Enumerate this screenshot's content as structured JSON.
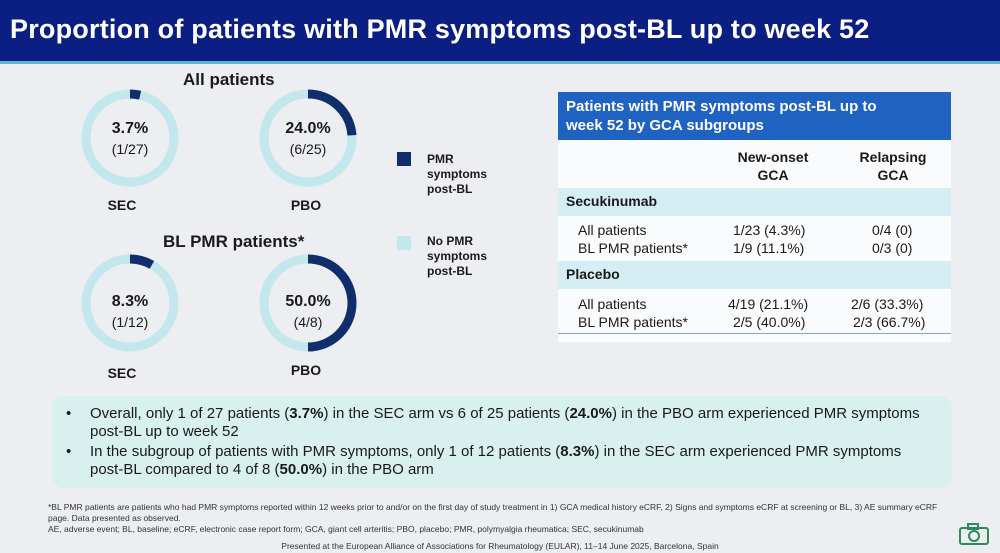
{
  "header": {
    "title": "Proportion of patients with PMR symptoms post-BL up to week 52"
  },
  "colors": {
    "filled": "#102e6b",
    "empty": "#c2e7ec",
    "title_bg": "#0b1e82",
    "table_head": "#1f62c2",
    "band": "#d4eef4",
    "bullet_bg": "#d8f0ee"
  },
  "chart_data": [
    {
      "type": "pie",
      "title": "All patients",
      "donuts": [
        {
          "arm": "SEC",
          "percent": 3.7,
          "fraction": "(1/27)",
          "label_pct": "3.7%"
        },
        {
          "arm": "PBO",
          "percent": 24.0,
          "fraction": "(6/25)",
          "label_pct": "24.0%"
        }
      ]
    },
    {
      "type": "pie",
      "title": "BL PMR patients*",
      "donuts": [
        {
          "arm": "SEC",
          "percent": 8.3,
          "fraction": "(1/12)",
          "label_pct": "8.3%"
        },
        {
          "arm": "PBO",
          "percent": 50.0,
          "fraction": "(4/8)",
          "label_pct": "50.0%"
        }
      ]
    }
  ],
  "legend": {
    "filled_label": [
      "PMR",
      "symptoms",
      "post-BL"
    ],
    "empty_label": [
      "No PMR",
      "symptoms",
      "post-BL"
    ]
  },
  "table": {
    "title_line1": "Patients with PMR symptoms post-BL up to",
    "title_line2": "week 52 by GCA subgroups",
    "col1": [
      "New-onset",
      "GCA"
    ],
    "col2": [
      "Relapsing",
      "GCA"
    ],
    "groups": [
      {
        "name": "Secukinumab",
        "rows": [
          {
            "label": "All patients",
            "new": "1/23 (4.3%)",
            "rel": "0/4 (0)"
          },
          {
            "label": "BL PMR patients*",
            "new": "1/9 (11.1%)",
            "rel": "0/3 (0)"
          }
        ]
      },
      {
        "name": "Placebo",
        "rows": [
          {
            "label": "All patients",
            "new": "4/19 (21.1%)",
            "rel": "2/6 (33.3%)"
          },
          {
            "label": "BL PMR patients*",
            "new": "2/5 (40.0%)",
            "rel": "2/3 (66.7%)"
          }
        ]
      }
    ]
  },
  "bullets": {
    "b1": {
      "t1": "Overall, only 1 of 27 patients (",
      "v1": "3.7%",
      "t2": ") in the SEC arm vs 6 of 25 patients (",
      "v2": "24.0%",
      "t3": ") in the PBO arm experienced PMR symptoms post-BL up to week 52"
    },
    "b2": {
      "t1": "In the subgroup of patients with PMR symptoms, only 1 of 12 patients (",
      "v1": "8.3%",
      "t2": ") in the SEC arm experienced PMR symptoms post-BL compared to 4 of 8 (",
      "v2": "50.0%",
      "t3": ") in the PBO arm"
    }
  },
  "footnotes": {
    "line1": "*BL PMR patients are patients who had PMR symptoms reported within 12 weeks prior to and/or on the first day of study treatment in 1) GCA medical history eCRF, 2) Signs and symptoms eCRF at screening or BL, 3) AE summary eCRF page. Data presented as observed.",
    "line2": "AE, adverse event; BL, baseline; eCRF, electronic case report form; GCA, giant cell arteritis; PBO, placebo; PMR, polymyalgia rheumatica; SEC, secukinumab",
    "presented": "Presented at the European Alliance of Associations for Rheumatology (EULAR), 11–14 June 2025, Barcelona, Spain"
  }
}
